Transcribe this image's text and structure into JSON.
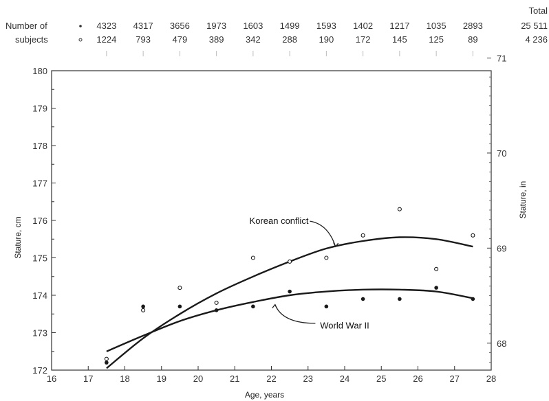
{
  "chart_data": {
    "type": "scatter",
    "xlabel": "Age, years",
    "ylabel": "Stature, cm",
    "y2label": "Stature, in",
    "xlim": [
      16,
      28
    ],
    "ylim": [
      172,
      180
    ],
    "y2lim_in": [
      67.7,
      71
    ],
    "x_ticks": [
      16,
      17,
      18,
      19,
      20,
      21,
      22,
      23,
      24,
      25,
      26,
      27,
      28
    ],
    "y_ticks": [
      172,
      173,
      174,
      175,
      176,
      177,
      178,
      179,
      180
    ],
    "y2_ticks": [
      68,
      69,
      70,
      71
    ],
    "counts_header": {
      "label_line1": "Number of",
      "label_line2": "subjects",
      "total_label": "Total",
      "ages": [
        17.5,
        18.5,
        19.5,
        20.5,
        21.5,
        22.5,
        23.5,
        24.5,
        25.5,
        26.5,
        27.5
      ],
      "ww2_counts": [
        "4323",
        "4317",
        "3656",
        "1973",
        "1603",
        "1499",
        "1593",
        "1402",
        "1217",
        "1035",
        "2893"
      ],
      "korean_counts": [
        "1224",
        "793",
        "479",
        "389",
        "342",
        "288",
        "190",
        "172",
        "145",
        "125",
        "89"
      ],
      "ww2_total": "25 511",
      "korean_total": "4 236"
    },
    "series": [
      {
        "name": "World War II",
        "marker": "filled",
        "points": [
          [
            17.5,
            172.2
          ],
          [
            18.5,
            173.7
          ],
          [
            19.5,
            173.7
          ],
          [
            20.5,
            173.6
          ],
          [
            21.5,
            173.7
          ],
          [
            22.5,
            174.1
          ],
          [
            23.5,
            173.7
          ],
          [
            24.5,
            173.9
          ],
          [
            25.5,
            173.9
          ],
          [
            26.5,
            174.2
          ],
          [
            27.5,
            173.9
          ]
        ],
        "curve": [
          [
            17.5,
            172.5
          ],
          [
            18.5,
            172.92
          ],
          [
            19.5,
            173.31
          ],
          [
            20.5,
            173.6
          ],
          [
            21.5,
            173.82
          ],
          [
            22.5,
            174.0
          ],
          [
            23.5,
            174.1
          ],
          [
            24.5,
            174.15
          ],
          [
            25.5,
            174.15
          ],
          [
            26.5,
            174.1
          ],
          [
            27.5,
            173.92
          ]
        ]
      },
      {
        "name": "Korean conflict",
        "marker": "open",
        "points": [
          [
            17.5,
            172.3
          ],
          [
            18.5,
            173.6
          ],
          [
            19.5,
            174.2
          ],
          [
            20.5,
            173.8
          ],
          [
            21.5,
            175.0
          ],
          [
            22.5,
            174.9
          ],
          [
            23.5,
            175.0
          ],
          [
            24.5,
            175.6
          ],
          [
            25.5,
            176.3
          ],
          [
            26.5,
            174.7
          ],
          [
            27.5,
            175.6
          ]
        ],
        "curve": [
          [
            17.5,
            172.05
          ],
          [
            18.5,
            172.85
          ],
          [
            19.5,
            173.5
          ],
          [
            20.5,
            174.05
          ],
          [
            21.5,
            174.5
          ],
          [
            22.5,
            174.9
          ],
          [
            23.5,
            175.25
          ],
          [
            24.5,
            175.45
          ],
          [
            25.5,
            175.55
          ],
          [
            26.5,
            175.5
          ],
          [
            27.5,
            175.3
          ]
        ]
      }
    ],
    "annotations": [
      {
        "text": "Korean conflict",
        "series": 1
      },
      {
        "text": "World War II",
        "series": 0
      }
    ],
    "colors": {
      "ink": "#222222",
      "axis": "#333333"
    }
  }
}
